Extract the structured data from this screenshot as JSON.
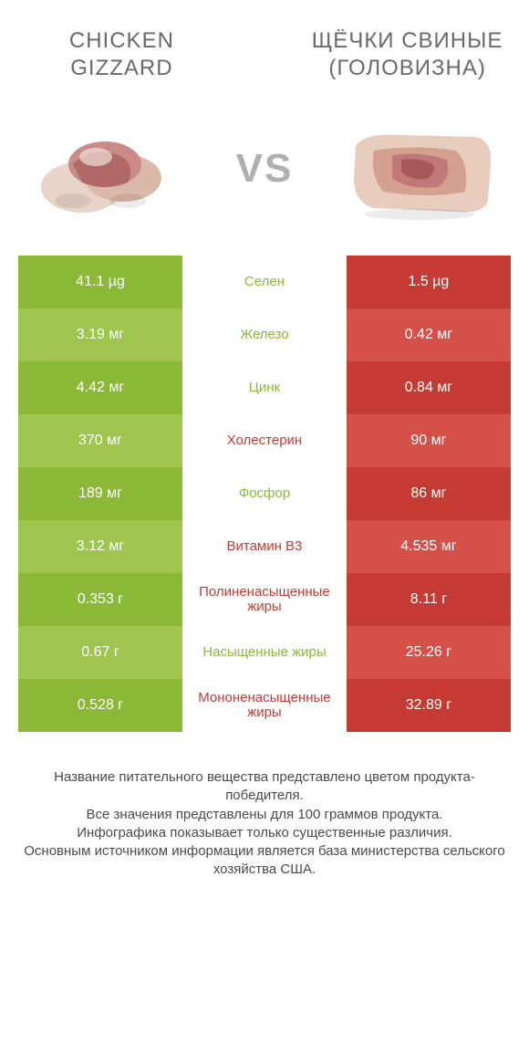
{
  "colors": {
    "green_dark": "#8cb837",
    "green_light": "#9fc54e",
    "red_dark": "#c53a32",
    "red_light": "#d45048",
    "text_green": "#8cb837",
    "text_red": "#c53a32",
    "vs_color": "#b0b0b0",
    "title_color": "#6a6a6a"
  },
  "product_left": {
    "title": "CHICKEN GIZZARD"
  },
  "product_right": {
    "title": "ЩЁЧКИ СВИНЫЕ (ГОЛОВИЗНА)"
  },
  "vs_label": "VS",
  "rows": [
    {
      "left": "41.1 µg",
      "mid": "Селен",
      "right": "1.5 µg",
      "winner": "left"
    },
    {
      "left": "3.19 мг",
      "mid": "Железо",
      "right": "0.42 мг",
      "winner": "left"
    },
    {
      "left": "4.42 мг",
      "mid": "Цинк",
      "right": "0.84 мг",
      "winner": "left"
    },
    {
      "left": "370 мг",
      "mid": "Холестерин",
      "right": "90 мг",
      "winner": "right"
    },
    {
      "left": "189 мг",
      "mid": "Фосфор",
      "right": "86 мг",
      "winner": "left"
    },
    {
      "left": "3.12 мг",
      "mid": "Витамин B3",
      "right": "4.535 мг",
      "winner": "right"
    },
    {
      "left": "0.353 г",
      "mid": "Полиненасыщенные жиры",
      "right": "8.11 г",
      "winner": "right"
    },
    {
      "left": "0.67 г",
      "mid": "Насыщенные жиры",
      "right": "25.26 г",
      "winner": "left"
    },
    {
      "left": "0.528 г",
      "mid": "Мононенасыщенные жиры",
      "right": "32.89 г",
      "winner": "right"
    }
  ],
  "footer_lines": [
    "Название питательного вещества представлено цветом продукта-победителя.",
    "Все значения представлены для 100 граммов продукта.",
    "Инфографика показывает только существенные различия.",
    "Основным источником информации является база министерства сельского хозяйства США."
  ]
}
